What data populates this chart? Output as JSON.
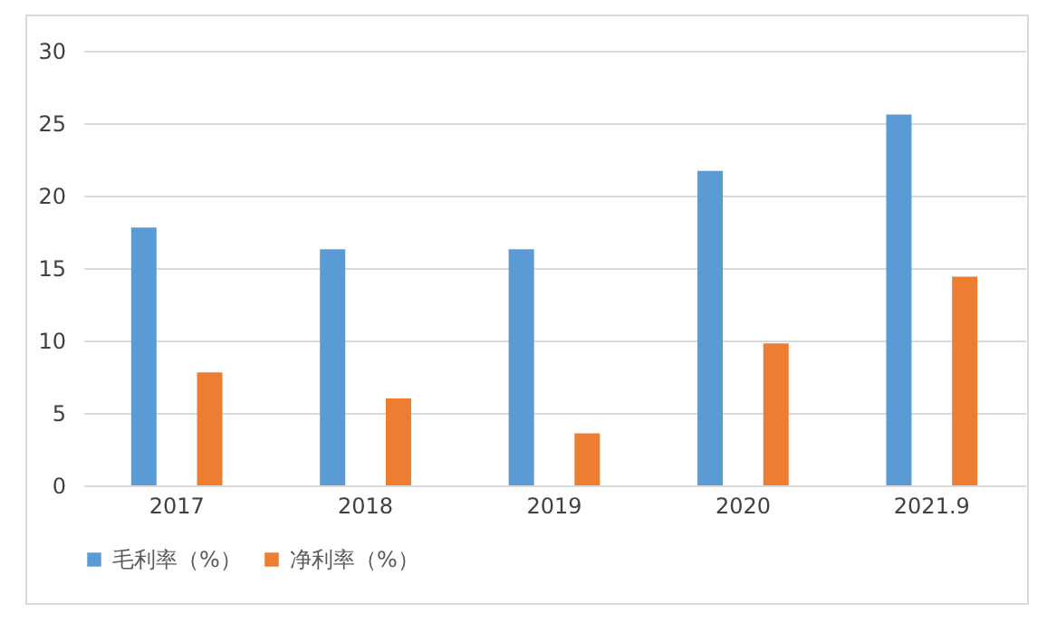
{
  "chart_data": {
    "type": "bar",
    "categories": [
      "2017",
      "2018",
      "2019",
      "2020",
      "2021.9"
    ],
    "series": [
      {
        "name": "毛利率（%）",
        "color": "#5b9bd5",
        "values": [
          17.8,
          16.3,
          16.3,
          21.7,
          25.6
        ]
      },
      {
        "name": "净利率（%）",
        "color": "#ed7d31",
        "values": [
          7.8,
          6.0,
          3.6,
          9.8,
          14.4
        ]
      }
    ],
    "ylim": [
      0,
      30
    ],
    "yticks": [
      0,
      5,
      10,
      15,
      20,
      25,
      30
    ],
    "grid": "y",
    "legend": "bottom"
  }
}
